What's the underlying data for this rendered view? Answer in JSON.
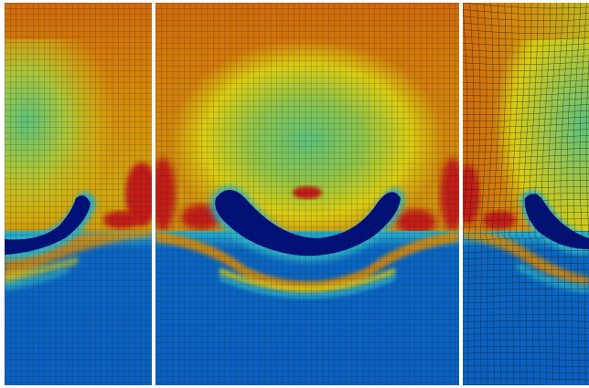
{
  "figure": {
    "panel_count": 3,
    "colormap": [
      "#003a9e",
      "#0a66c2",
      "#2bb4c9",
      "#5ec27a",
      "#d9cc12",
      "#e08a06",
      "#cf6a0c",
      "#c21a12"
    ],
    "colors": {
      "background": "#ffffff",
      "mesh_line": "#1a1a1a",
      "upper_region": "#cf6a0c",
      "lower_region": "#0a66c2",
      "bubble_core": "#00107a",
      "plume": "#5ec27a",
      "hot_zone": "#c21a12"
    },
    "panels": [
      {
        "id": "left",
        "mesh": "regular"
      },
      {
        "id": "center",
        "mesh": "regular"
      },
      {
        "id": "right",
        "mesh": "distorted"
      }
    ]
  }
}
